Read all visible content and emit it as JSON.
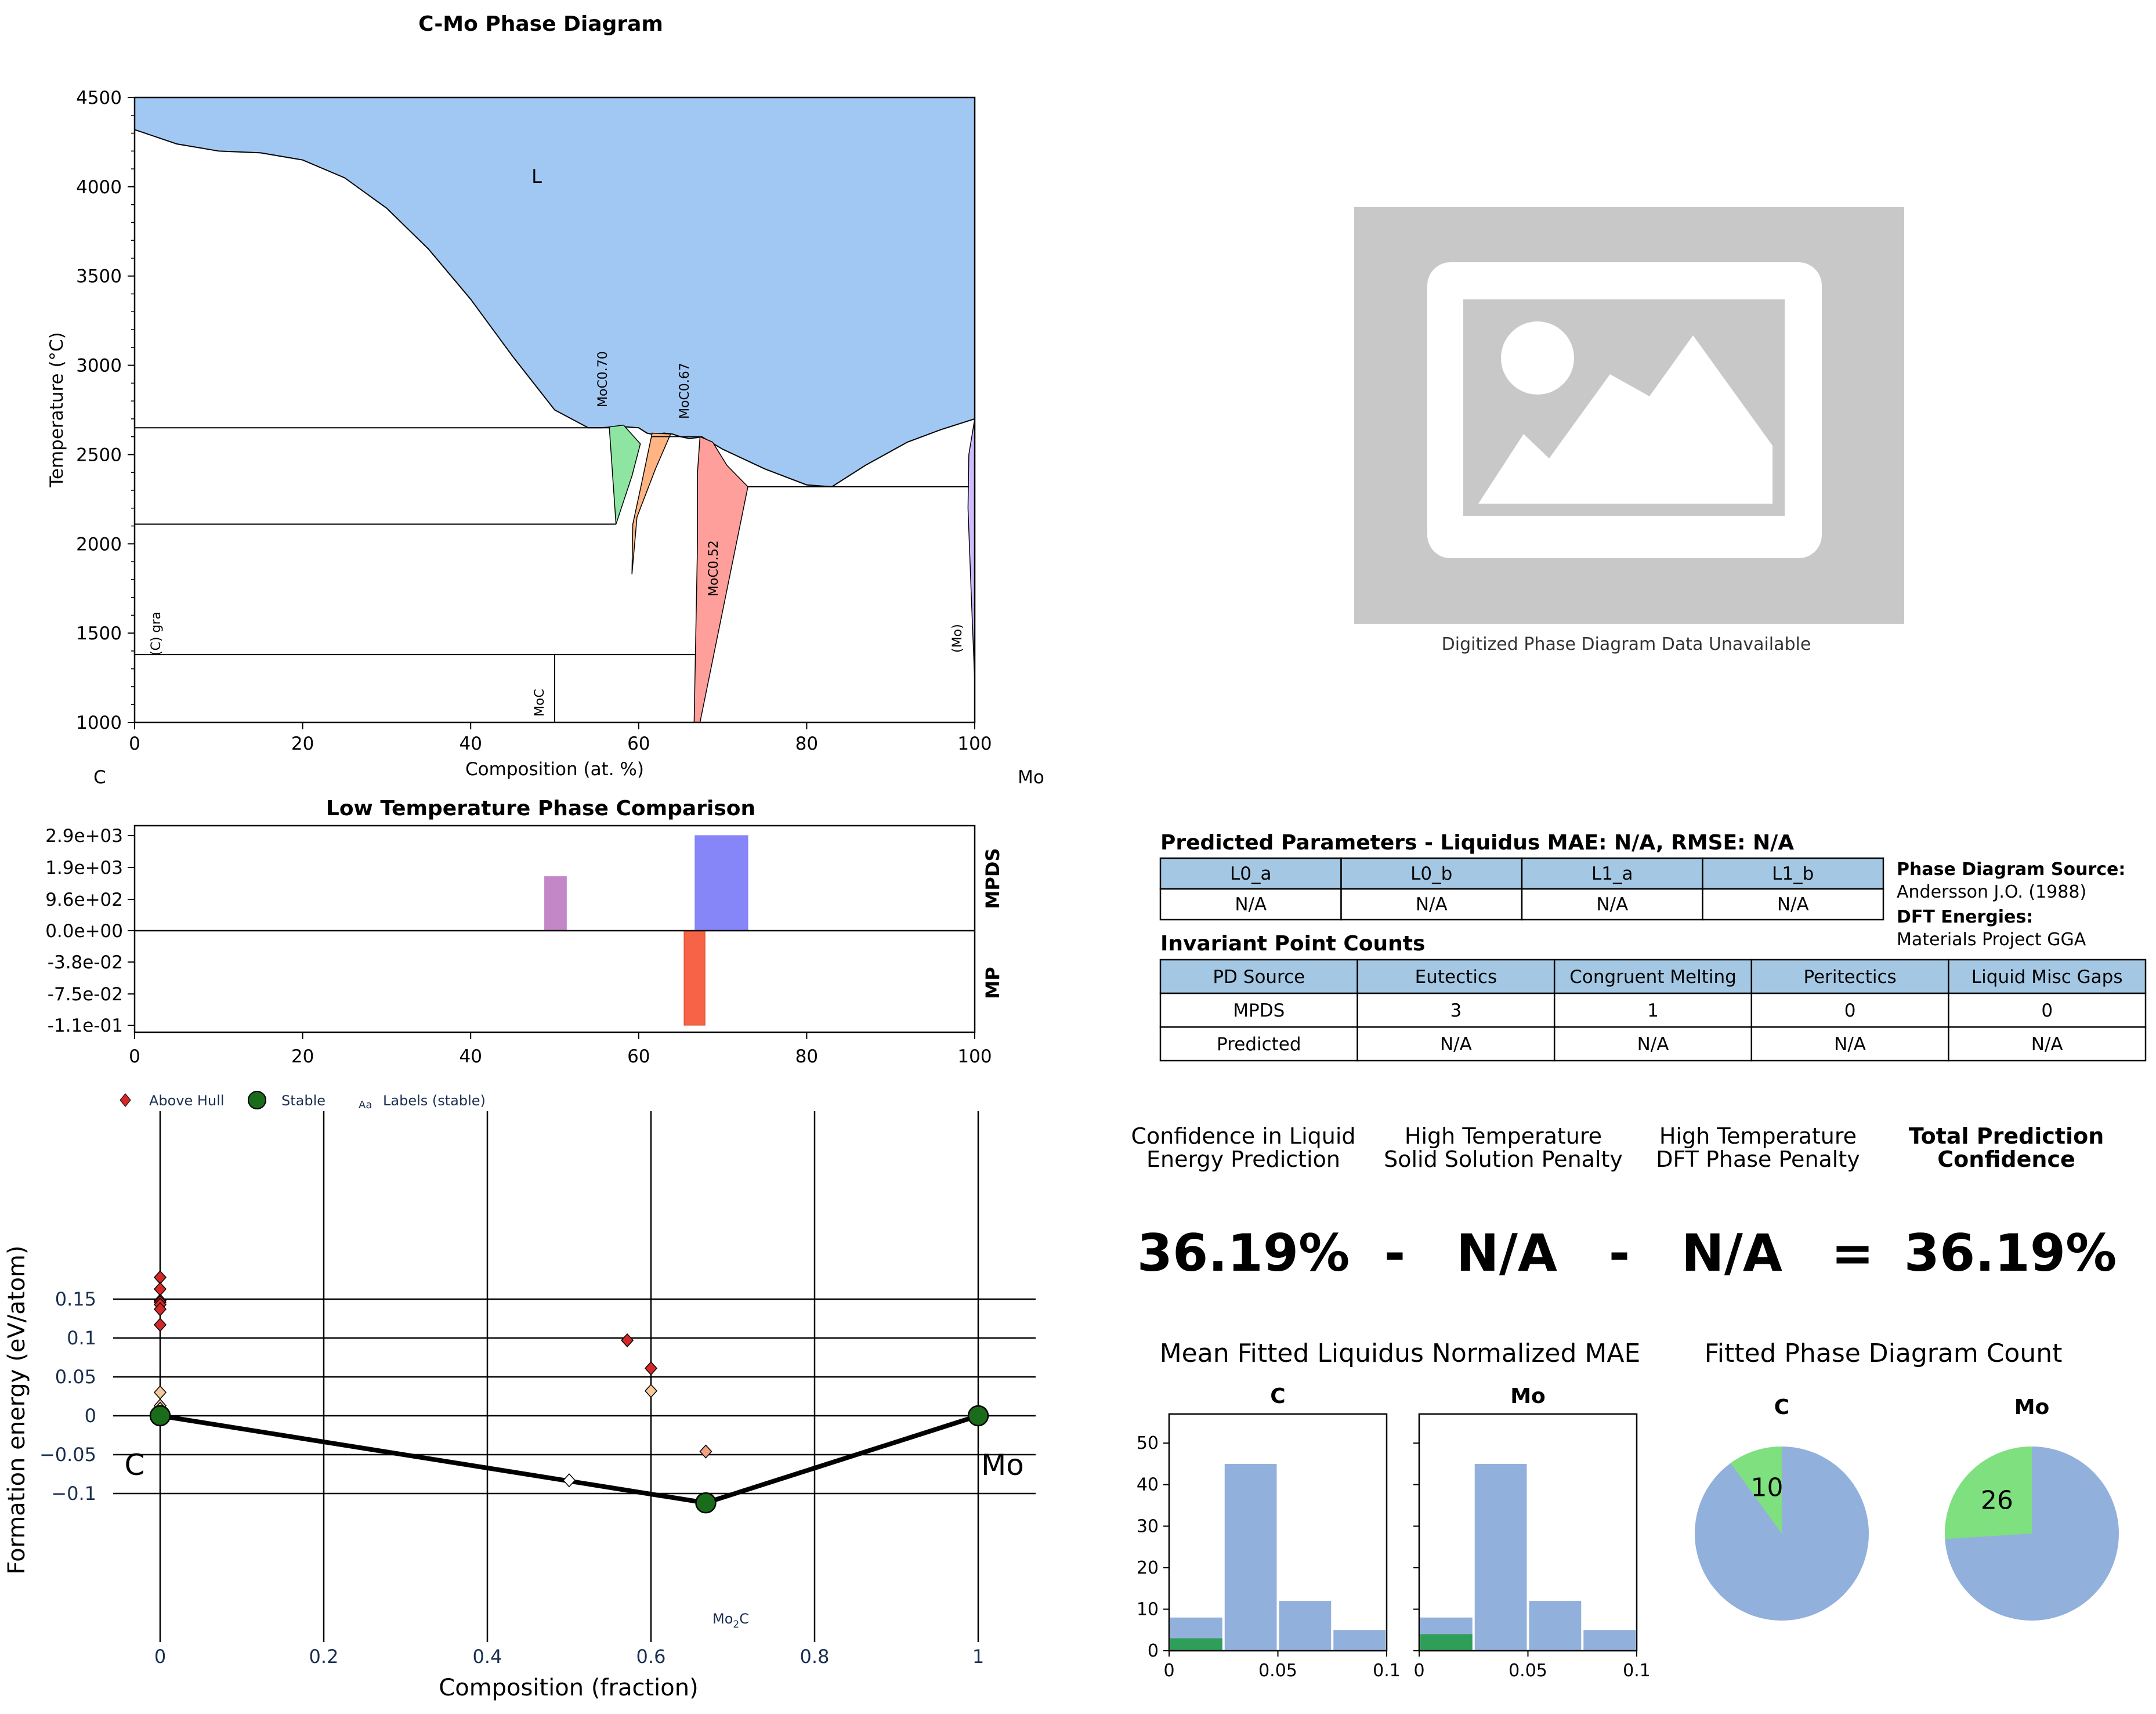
{
  "colors": {
    "liquid": "#a1c8f3",
    "moc070": "#8de5a1",
    "moc067": "#ffb482",
    "mo2c": "#ff9f9b",
    "mo": "#d0bbff",
    "lt_mpds_a": "#c07fc3",
    "lt_mpds_b": "#8080f8",
    "lt_mp": "#f76346",
    "table_header": "#a4c8e3",
    "hist_blue": "#92b0dc",
    "hist_green": "#2f9e58",
    "pie_blue": "#92b0dc",
    "pie_green": "#7ee07e",
    "placeholder": "#c8c8c8",
    "above_hull": "#d62728",
    "stable": "#1a6b1a"
  },
  "phase_diagram": {
    "title": "C-Mo Phase Diagram",
    "xlabel": "Composition (at. %)",
    "ylabel": "Temperature (°C)",
    "left_element": "C",
    "right_element": "Mo",
    "xticks": [
      "0",
      "20",
      "40",
      "60",
      "80",
      "100"
    ],
    "yticks": [
      "1000",
      "1500",
      "2000",
      "2500",
      "3000",
      "3500",
      "4000",
      "4500"
    ],
    "labels": {
      "liquid": "L",
      "moc070": "MoC0.70",
      "moc067": "MoC0.67",
      "mo2c": "MoC0.52",
      "gra": "(C) gra",
      "moc": "MoC",
      "mo": "(Mo)"
    }
  },
  "chart_data": [
    {
      "type": "area",
      "title": "C-Mo Phase Diagram",
      "xlabel": "Composition (at. %)",
      "ylabel": "Temperature (°C)",
      "xlim": [
        0,
        100
      ],
      "ylim": [
        1000,
        4500
      ],
      "liquidus": {
        "x": [
          0,
          5,
          10,
          15,
          20,
          25,
          30,
          35,
          40,
          45,
          50,
          54,
          55.5,
          57,
          58.5,
          60,
          61,
          62,
          63,
          64,
          65,
          66,
          67,
          67.5,
          70,
          75,
          80,
          83,
          87,
          92,
          96,
          100
        ],
        "y": [
          4320,
          4240,
          4200,
          4190,
          4150,
          4050,
          3880,
          3650,
          3370,
          3050,
          2750,
          2650,
          2650,
          2655,
          2655,
          2650,
          2620,
          2610,
          2620,
          2615,
          2600,
          2590,
          2595,
          2600,
          2530,
          2420,
          2330,
          2320,
          2440,
          2570,
          2640,
          2700
        ]
      },
      "invariant_lines_C": [
        2650,
        2110,
        1380,
        2320
      ]
    },
    {
      "type": "bar",
      "title": "Low Temperature Phase Comparison",
      "xlim": [
        0,
        100
      ],
      "ylim": [
        -0.11,
        2900
      ],
      "yticks": [
        "2.9e+03",
        "1.9e+03",
        "9.6e+02",
        "0.0e+00",
        "-3.8e-02",
        "-7.5e-02",
        "-1.1e-01"
      ],
      "xticks": [
        "0",
        "20",
        "40",
        "60",
        "80",
        "100"
      ],
      "series": [
        {
          "name": "MPDS",
          "bars": [
            {
              "x0": 48.8,
              "x1": 51.4,
              "value": 1650
            },
            {
              "x0": 66.7,
              "x1": 73.0,
              "value": 2900
            }
          ]
        },
        {
          "name": "MP",
          "bars": [
            {
              "x0": 65.4,
              "x1": 67.9,
              "value": -0.11
            }
          ]
        }
      ]
    },
    {
      "type": "scatter",
      "xlabel": "Composition (fraction)",
      "ylabel": "Formation energy (eV/atom)",
      "xlim": [
        -0.05,
        1.07
      ],
      "ylim": [
        -0.14,
        0.2
      ],
      "xticks": [
        "0",
        "0.2",
        "0.4",
        "0.6",
        "0.8",
        "1"
      ],
      "yticks": [
        "0.15",
        "0.1",
        "0.05",
        "0",
        "−0.05",
        "−0.1"
      ],
      "legend": [
        "Above Hull",
        "Stable",
        "Labels (stable)"
      ],
      "stable": [
        {
          "x": 0,
          "y": 0,
          "label": "C"
        },
        {
          "x": 0.667,
          "y": -0.112,
          "label": "Mo2C"
        },
        {
          "x": 1,
          "y": 0,
          "label": "Mo"
        }
      ],
      "above_hull": [
        {
          "x": 0,
          "y": 0.178
        },
        {
          "x": 0,
          "y": 0.163
        },
        {
          "x": 0,
          "y": 0.148
        },
        {
          "x": 0,
          "y": 0.146
        },
        {
          "x": 0,
          "y": 0.143
        },
        {
          "x": 0,
          "y": 0.137
        },
        {
          "x": 0,
          "y": 0.117
        },
        {
          "x": 0,
          "y": 0.03
        },
        {
          "x": 0,
          "y": 0.013
        },
        {
          "x": 0,
          "y": 0.009
        },
        {
          "x": 0,
          "y": 0.005
        },
        {
          "x": 0.571,
          "y": 0.097
        },
        {
          "x": 0.6,
          "y": 0.061
        },
        {
          "x": 0.6,
          "y": 0.032
        },
        {
          "x": 0.667,
          "y": -0.046
        },
        {
          "x": 0.5,
          "y": -0.083
        }
      ],
      "hull": [
        {
          "x": 0,
          "y": 0
        },
        {
          "x": 0.667,
          "y": -0.112
        },
        {
          "x": 1,
          "y": 0
        }
      ]
    },
    {
      "type": "bar",
      "title": "Mean Fitted Liquidus Normalized MAE",
      "subplots": [
        {
          "name": "C",
          "bins": [
            0.0125,
            0.0375,
            0.0625,
            0.0875
          ],
          "values": [
            8,
            45,
            12,
            5
          ],
          "highlight": [
            3,
            0,
            0,
            0
          ]
        },
        {
          "name": "Mo",
          "bins": [
            0.0125,
            0.0375,
            0.0625,
            0.0875
          ],
          "values": [
            8,
            45,
            12,
            5
          ],
          "highlight": [
            4,
            0,
            0,
            0
          ]
        }
      ],
      "xlim": [
        0,
        0.1
      ],
      "ylim": [
        0,
        57
      ],
      "yticks": [
        "0",
        "10",
        "20",
        "30",
        "40",
        "50"
      ],
      "xticks": [
        "0",
        "0.05",
        "0.1"
      ]
    },
    {
      "type": "pie",
      "title": "Fitted Phase Diagram Count",
      "pies": [
        {
          "name": "C",
          "highlight": 10,
          "rest": 90,
          "label": "10"
        },
        {
          "name": "Mo",
          "highlight": 26,
          "rest": 74,
          "label": "26"
        }
      ]
    }
  ],
  "placeholder": {
    "caption": "Digitized Phase Diagram Data Unavailable"
  },
  "params": {
    "title": "Predicted Parameters - Liquidus MAE: N/A, RMSE: N/A",
    "headers": [
      "L0_a",
      "L0_b",
      "L1_a",
      "L1_b"
    ],
    "values": [
      "N/A",
      "N/A",
      "N/A",
      "N/A"
    ]
  },
  "sources": {
    "pd_label": "Phase Diagram Source:",
    "pd_value": "Andersson J.O. (1988)",
    "dft_label": "DFT Energies:",
    "dft_value": "Materials Project GGA"
  },
  "invariants": {
    "title": "Invariant Point Counts",
    "headers": [
      "PD Source",
      "Eutectics",
      "Congruent Melting",
      "Peritectics",
      "Liquid Misc Gaps"
    ],
    "rows": [
      [
        "MPDS",
        "3",
        "1",
        "0",
        "0"
      ],
      [
        "Predicted",
        "N/A",
        "N/A",
        "N/A",
        "N/A"
      ]
    ]
  },
  "confidence": {
    "h1a": "Confidence in Liquid",
    "h1b": "Energy Prediction",
    "h2a": "High Temperature",
    "h2b": "Solid Solution Penalty",
    "h3a": "High Temperature",
    "h3b": "DFT Phase Penalty",
    "h4a": "Total Prediction",
    "h4b": "Confidence",
    "v1": "36.19%",
    "op1": "-",
    "v2": "N/A",
    "op2": "-",
    "v3": "N/A",
    "op3": "=",
    "v4": "36.19%"
  }
}
